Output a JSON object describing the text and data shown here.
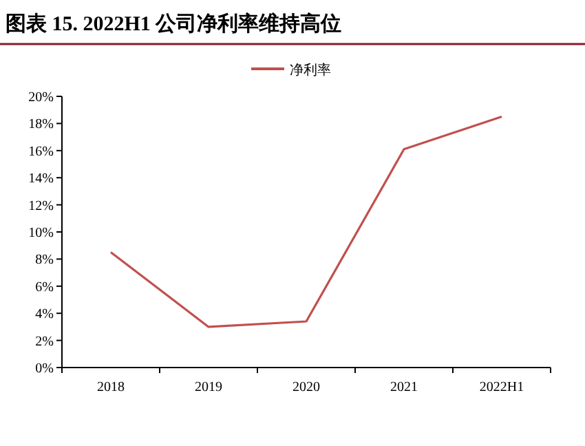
{
  "chart_data": {
    "type": "line",
    "title": "图表 15. 2022H1 公司净利率维持高位",
    "categories": [
      "2018",
      "2019",
      "2020",
      "2021",
      "2022H1"
    ],
    "series": [
      {
        "name": "净利率",
        "color": "#c0504d",
        "values": [
          8.5,
          3.0,
          3.4,
          16.1,
          18.5
        ]
      }
    ],
    "ylim": [
      0,
      20
    ],
    "yticks": [
      {
        "value": 0,
        "label": "0%"
      },
      {
        "value": 2,
        "label": "2%"
      },
      {
        "value": 4,
        "label": "4%"
      },
      {
        "value": 6,
        "label": "6%"
      },
      {
        "value": 8,
        "label": "8%"
      },
      {
        "value": 10,
        "label": "10%"
      },
      {
        "value": 12,
        "label": "12%"
      },
      {
        "value": 14,
        "label": "14%"
      },
      {
        "value": 16,
        "label": "16%"
      },
      {
        "value": 18,
        "label": "18%"
      },
      {
        "value": 20,
        "label": "20%"
      }
    ],
    "legend": "top",
    "grid": false
  }
}
